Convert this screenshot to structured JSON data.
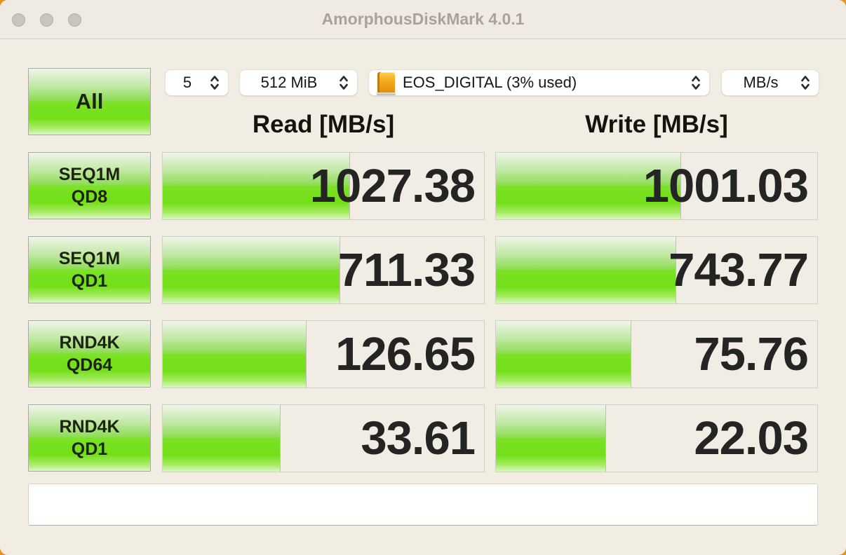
{
  "window": {
    "title": "AmorphousDiskMark 4.0.1"
  },
  "controls": {
    "run_count": {
      "value": "5"
    },
    "test_size": {
      "value": "512 MiB"
    },
    "target_volume": {
      "value": "EOS_DIGITAL (3% used)",
      "icon": "orange-external-drive"
    },
    "unit": {
      "value": "MB/s"
    }
  },
  "all_button": {
    "label": "All"
  },
  "columns": {
    "read_header": "Read [MB/s]",
    "write_header": "Write [MB/s]"
  },
  "rows": [
    {
      "label_line1": "SEQ1M",
      "label_line2": "QD8",
      "read_value": "1027.38",
      "write_value": "1001.03",
      "read_bar_percent": 58,
      "write_bar_percent": 57.5
    },
    {
      "label_line1": "SEQ1M",
      "label_line2": "QD1",
      "read_value": "711.33",
      "write_value": "743.77",
      "read_bar_percent": 55,
      "write_bar_percent": 56
    },
    {
      "label_line1": "RND4K",
      "label_line2": "QD64",
      "read_value": "126.65",
      "write_value": "75.76",
      "read_bar_percent": 44.5,
      "write_bar_percent": 42
    },
    {
      "label_line1": "RND4K",
      "label_line2": "QD1",
      "read_value": "33.61",
      "write_value": "22.03",
      "read_bar_percent": 36.5,
      "write_bar_percent": 34
    }
  ],
  "status_bar": {
    "value": "",
    "placeholder": ""
  },
  "colors": {
    "bar_green": "#72df16",
    "window_background": "#f2ede3",
    "desktop_background": "#e8921e",
    "title_text": "#a8a29a"
  }
}
